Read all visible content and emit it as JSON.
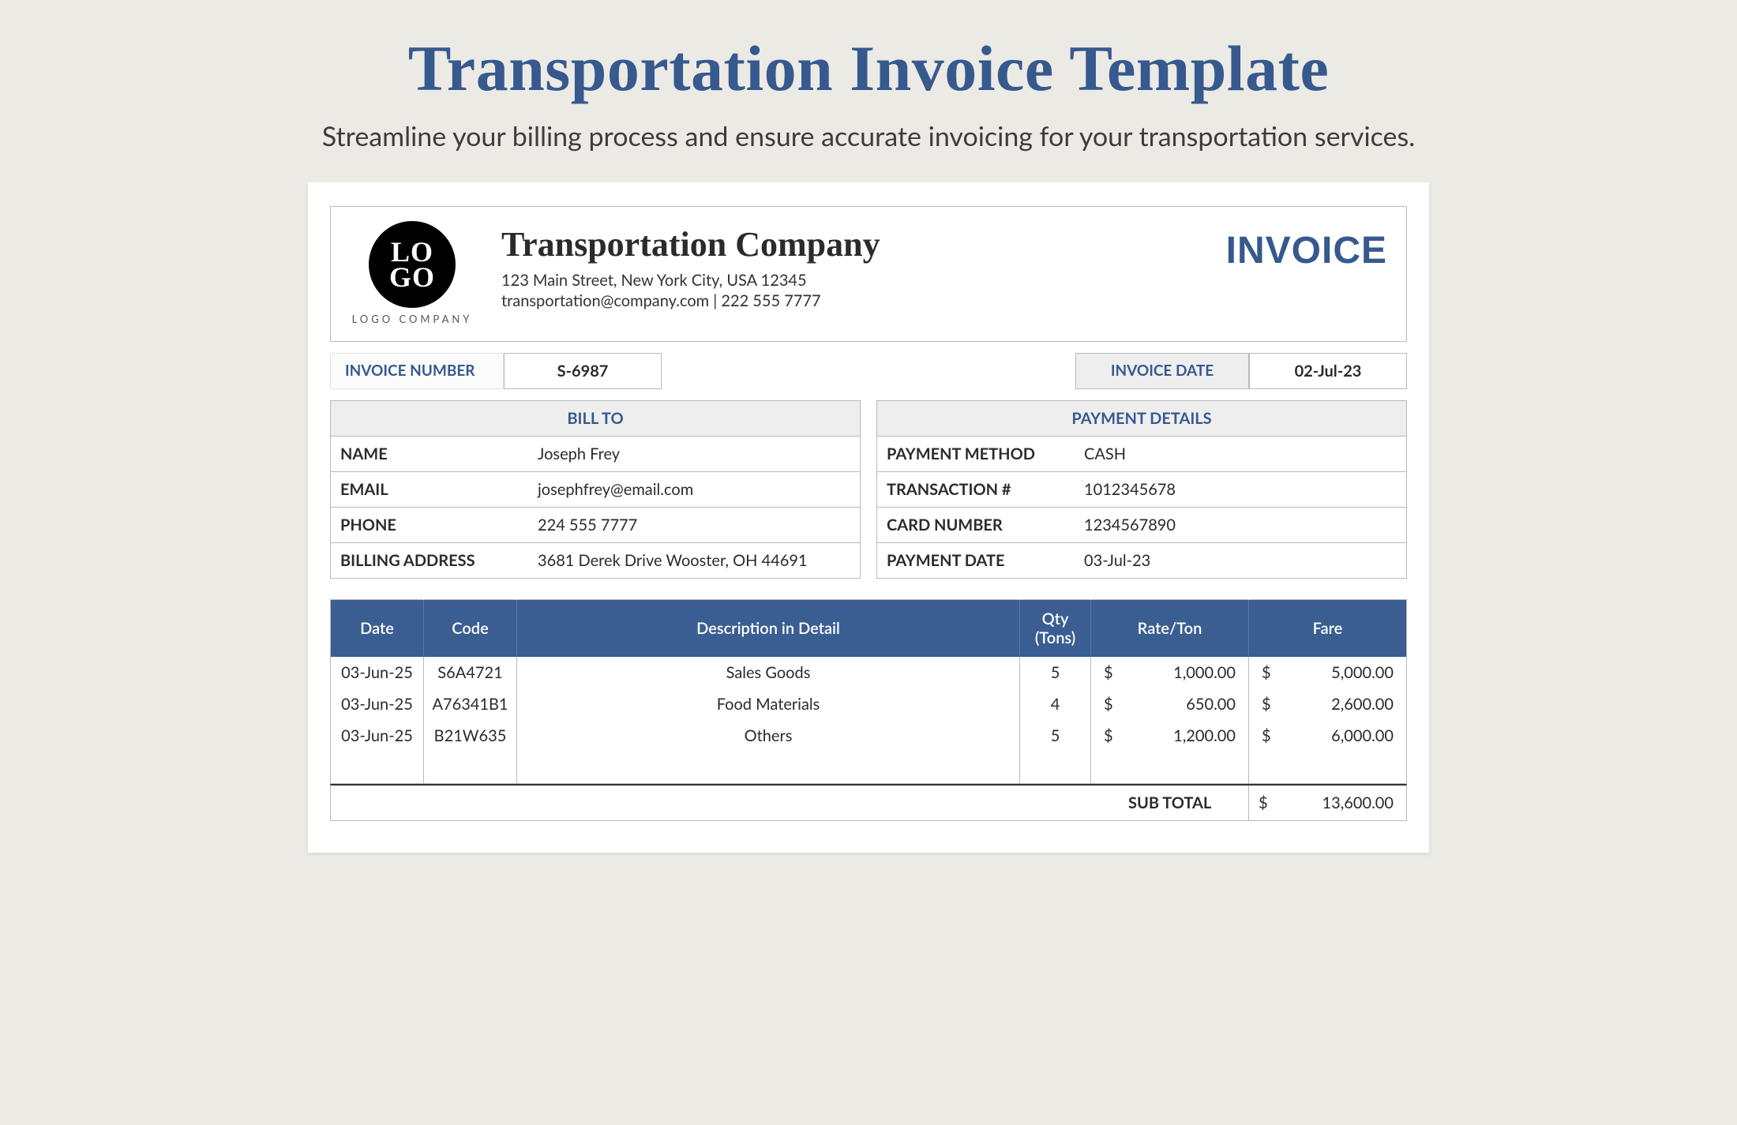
{
  "banner": {
    "title": "Transportation Invoice Template",
    "subtitle": "Streamline your billing process and ensure accurate invoicing for your transportation services."
  },
  "logo": {
    "top": "LO",
    "bottom": "GO",
    "caption": "LOGO COMPANY"
  },
  "company": {
    "name": "Transportation Company",
    "address": "123 Main Street, New York City, USA 12345",
    "contact": "transportation@company.com | 222 555 7777"
  },
  "invoice_word": "INVOICE",
  "invoice_number_label": "INVOICE NUMBER",
  "invoice_number": "S-6987",
  "invoice_date_label": "INVOICE DATE",
  "invoice_date": "02-Jul-23",
  "bill_to": {
    "heading": "BILL TO",
    "name_label": "NAME",
    "name": "Joseph Frey",
    "email_label": "EMAIL",
    "email": "josephfrey@email.com",
    "phone_label": "PHONE",
    "phone": "224 555 7777",
    "addr_label": "BILLING ADDRESS",
    "addr": "3681 Derek Drive Wooster, OH 44691"
  },
  "payment": {
    "heading": "PAYMENT DETAILS",
    "method_label": "PAYMENT METHOD",
    "method": "CASH",
    "txn_label": "TRANSACTION #",
    "txn": "1012345678",
    "card_label": "CARD NUMBER",
    "card": "1234567890",
    "date_label": "PAYMENT DATE",
    "date": "03-Jul-23"
  },
  "columns": {
    "date": "Date",
    "code": "Code",
    "desc": "Description in Detail",
    "qty": "Qty (Tons)",
    "rate": "Rate/Ton",
    "fare": "Fare"
  },
  "rows": [
    {
      "date": "03-Jun-25",
      "code": "S6A4721",
      "desc": "Sales Goods",
      "qty": "5",
      "rate": "1,000.00",
      "fare": "5,000.00"
    },
    {
      "date": "03-Jun-25",
      "code": "A76341B1",
      "desc": "Food Materials",
      "qty": "4",
      "rate": "650.00",
      "fare": "2,600.00"
    },
    {
      "date": "03-Jun-25",
      "code": "B21W635",
      "desc": "Others",
      "qty": "5",
      "rate": "1,200.00",
      "fare": "6,000.00"
    }
  ],
  "currency": "$",
  "subtotal_label": "SUB TOTAL",
  "subtotal": "13,600.00",
  "colors": {
    "brand_blue": "#36598e",
    "table_head_bg": "#3b5e92",
    "page_bg": "#eceae5",
    "cell_border": "#b9b9b9"
  }
}
